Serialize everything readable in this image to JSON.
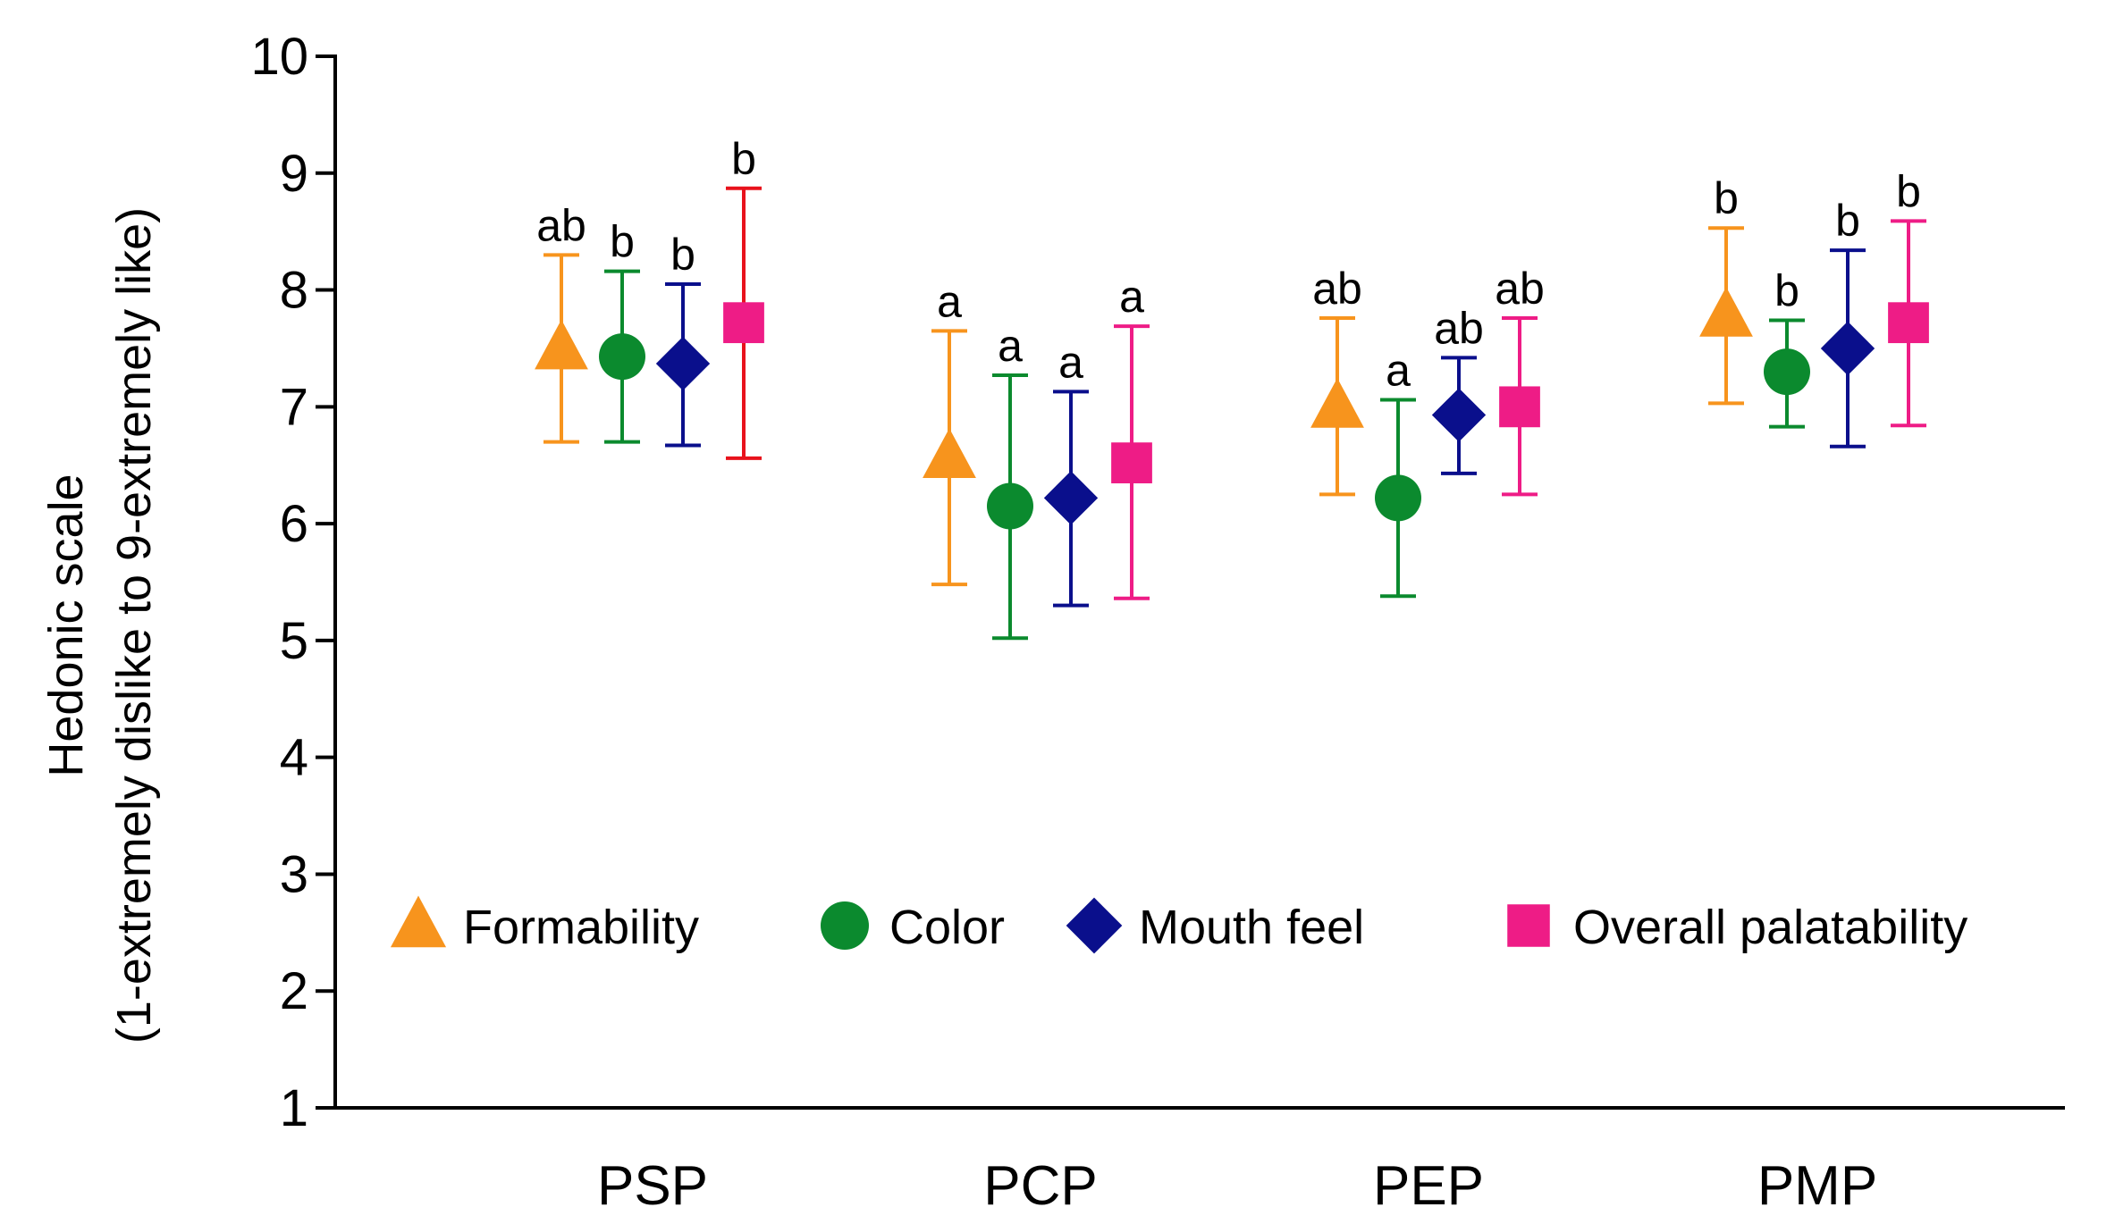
{
  "chart_data": {
    "type": "scatter",
    "subtype": "point-with-error-bars",
    "title": "",
    "xlabel": "",
    "ylabel": "Hedonic scale",
    "ylabel_line2": "(1-extremely dislike to 9-extremely like)",
    "ylim": [
      1,
      10
    ],
    "yticks": [
      "1",
      "2",
      "3",
      "4",
      "5",
      "6",
      "7",
      "8",
      "9",
      "10"
    ],
    "categories": [
      "PSP",
      "PCP",
      "PEP",
      "PMP"
    ],
    "legend_position": "center",
    "series": [
      {
        "name": "Formability",
        "marker": "triangle",
        "color": "#F7941D",
        "errorbar_colors": [
          "#F7941D",
          "#F7941D",
          "#F7941D",
          "#F7941D"
        ],
        "values": [
          7.5,
          6.57,
          7.0,
          7.78
        ],
        "err_low": [
          6.7,
          5.48,
          6.25,
          7.03
        ],
        "err_high": [
          8.3,
          7.65,
          7.76,
          8.53
        ],
        "labels": [
          "ab",
          "a",
          "ab",
          "b"
        ]
      },
      {
        "name": "Color",
        "marker": "circle",
        "color": "#0B8A2E",
        "errorbar_colors": [
          "#0B8A2E",
          "#0B8A2E",
          "#0B8A2E",
          "#0B8A2E"
        ],
        "values": [
          7.43,
          6.15,
          6.22,
          7.3
        ],
        "err_low": [
          6.7,
          5.02,
          5.38,
          6.83
        ],
        "err_high": [
          8.16,
          7.27,
          7.06,
          7.74
        ],
        "labels": [
          "b",
          "a",
          "a",
          "b"
        ]
      },
      {
        "name": "Mouth feel",
        "marker": "diamond",
        "color": "#0A0F8C",
        "errorbar_colors": [
          "#0A0F8C",
          "#0A0F8C",
          "#0A0F8C",
          "#0A0F8C"
        ],
        "values": [
          7.37,
          6.22,
          6.93,
          7.5
        ],
        "err_low": [
          6.67,
          5.3,
          6.43,
          6.66
        ],
        "err_high": [
          8.05,
          7.13,
          7.42,
          8.34
        ],
        "labels": [
          "b",
          "a",
          "ab",
          "b"
        ]
      },
      {
        "name": "Overall palatability",
        "marker": "square",
        "color": "#EE1C86",
        "errorbar_colors": [
          "#E8121C",
          "#EE1C86",
          "#EE1C86",
          "#EE1C86"
        ],
        "values": [
          7.72,
          6.52,
          7.0,
          7.72
        ],
        "err_low": [
          6.56,
          5.36,
          6.25,
          6.84
        ],
        "err_high": [
          8.87,
          7.69,
          7.76,
          8.59
        ],
        "labels": [
          "b",
          "a",
          "ab",
          "b"
        ]
      }
    ]
  }
}
